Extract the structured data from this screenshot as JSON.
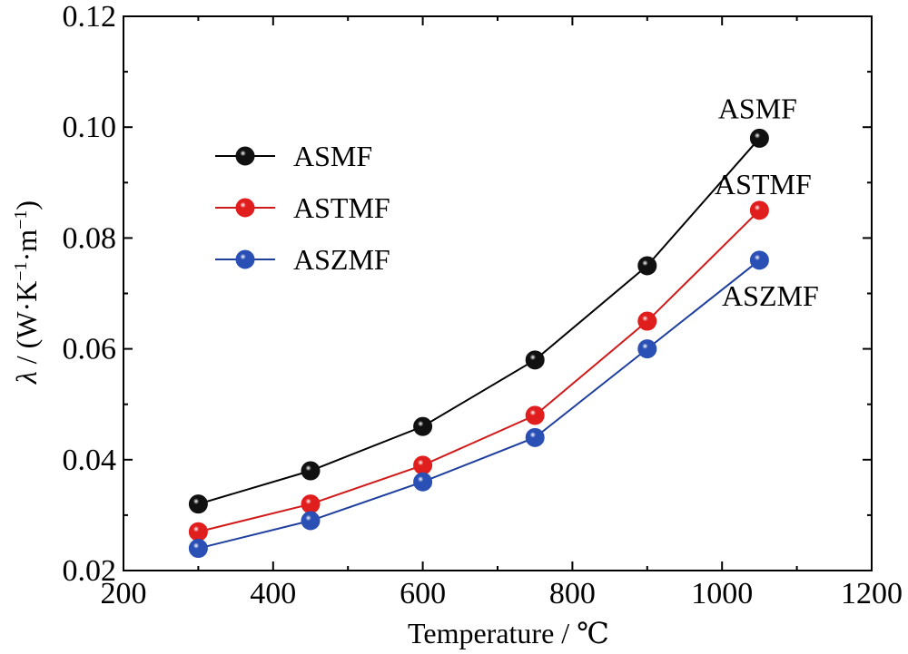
{
  "chart_data": {
    "type": "line",
    "xlabel": "Temperature / ℃",
    "ylabel_parts": {
      "symbol": "λ",
      "text_a": " / (W·K",
      "sup_a": "−1",
      "text_b": "·m",
      "sup_b": "−1",
      "text_c": ")"
    },
    "xlim": [
      200,
      1200
    ],
    "ylim": [
      0.02,
      0.12
    ],
    "x_ticks": [
      200,
      400,
      600,
      800,
      1000,
      1200
    ],
    "x_tick_labels": [
      "200",
      "400",
      "600",
      "800",
      "1000",
      "1200"
    ],
    "y_ticks": [
      0.02,
      0.04,
      0.06,
      0.08,
      0.1,
      0.12
    ],
    "y_tick_labels": [
      "0.02",
      "0.04",
      "0.06",
      "0.08",
      "0.10",
      "0.12"
    ],
    "x": [
      300,
      450,
      600,
      750,
      900,
      1050
    ],
    "series": [
      {
        "name": "ASMF",
        "color": "#000000",
        "marker_color": "#111111",
        "values": [
          0.032,
          0.038,
          0.046,
          0.058,
          0.075,
          0.098
        ]
      },
      {
        "name": "ASTMF",
        "color": "#d11a1a",
        "marker_color": "#e01e1e",
        "values": [
          0.027,
          0.032,
          0.039,
          0.048,
          0.065,
          0.085
        ]
      },
      {
        "name": "ASZMF",
        "color": "#1f3f9f",
        "marker_color": "#2a4fb5",
        "values": [
          0.024,
          0.029,
          0.036,
          0.044,
          0.06,
          0.076
        ]
      }
    ],
    "legend": {
      "placement": "upper-left",
      "entries": [
        "ASMF",
        "ASTMF",
        "ASZMF"
      ]
    },
    "annotations": [
      "ASMF",
      "ASTMF",
      "ASZMF"
    ],
    "grid": false
  }
}
